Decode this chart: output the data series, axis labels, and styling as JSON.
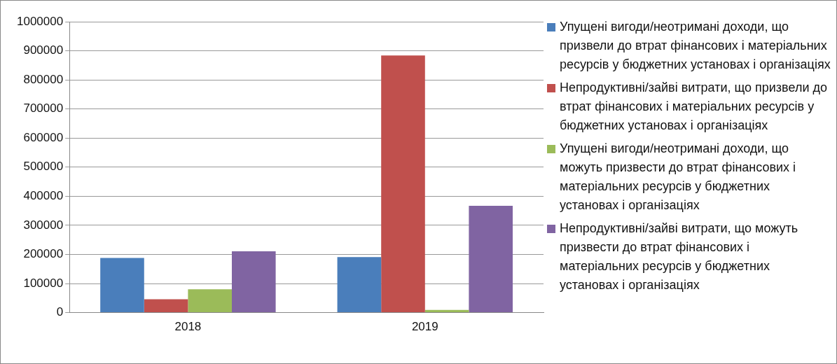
{
  "chart_data": {
    "type": "bar",
    "categories": [
      "2018",
      "2019"
    ],
    "series": [
      {
        "name": "Упущені вигоди/неотримані доходи, що призвели до втрат фінансових і матеріальних ресурсів у бюджетних установах і організаціях",
        "color": "#4a7ebb",
        "values": [
          188000,
          191000
        ]
      },
      {
        "name": "Непродуктивні/зайві витрати, що призвели до втрат фінансових і матеріальних ресурсів у бюджетних установах і організаціях",
        "color": "#c0504d",
        "values": [
          46000,
          884000
        ]
      },
      {
        "name": "Упущені вигоди/неотримані доходи, що можуть призвести до втрат фінансових і матеріальних ресурсів у бюджетних установах і організаціях",
        "color": "#9bbb59",
        "values": [
          80000,
          9000
        ]
      },
      {
        "name": "Непродуктивні/зайві витрати, що можуть призвести до втрат фінансових і матеріальних ресурсів у бюджетних установах і організаціях",
        "color": "#8064a2",
        "values": [
          211000,
          367000
        ]
      }
    ],
    "ylim": [
      0,
      1000000
    ],
    "yticks": [
      0,
      100000,
      200000,
      300000,
      400000,
      500000,
      600000,
      700000,
      800000,
      900000,
      1000000
    ],
    "grid": "y",
    "legend": "right"
  }
}
